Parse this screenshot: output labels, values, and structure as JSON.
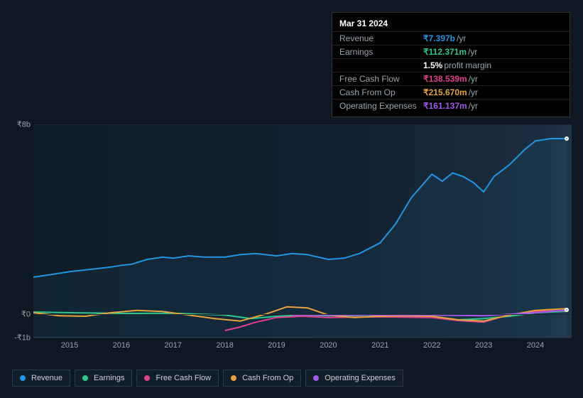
{
  "tooltip": {
    "date": "Mar 31 2024",
    "rows": [
      {
        "label": "Revenue",
        "value": "₹7.397b",
        "unit": "/yr",
        "color": "#2394df"
      },
      {
        "label": "Earnings",
        "value": "₹112.371m",
        "unit": "/yr",
        "color": "#2dc98f",
        "extra_bold": "1.5%",
        "extra": "profit margin"
      },
      {
        "label": "Free Cash Flow",
        "value": "₹138.539m",
        "unit": "/yr",
        "color": "#e0418e"
      },
      {
        "label": "Cash From Op",
        "value": "₹215.670m",
        "unit": "/yr",
        "color": "#e8a33d"
      },
      {
        "label": "Operating Expenses",
        "value": "₹161.137m",
        "unit": "/yr",
        "color": "#a259ec"
      }
    ]
  },
  "chart": {
    "type": "line",
    "background_gradient": [
      "#101c27",
      "#1a2d3e"
    ],
    "grid_color": "#1c2730",
    "y_axis": {
      "min": -1,
      "max": 8,
      "ticks": [
        {
          "v": 8,
          "label": "₹8b"
        },
        {
          "v": 0,
          "label": "₹0"
        },
        {
          "v": -1,
          "label": "-₹1b"
        }
      ],
      "label_color": "#9aa4ad",
      "label_fontsize": 11
    },
    "x_axis": {
      "min": 2014.3,
      "max": 2024.7,
      "ticks": [
        2015,
        2016,
        2017,
        2018,
        2019,
        2020,
        2021,
        2022,
        2023,
        2024
      ],
      "label_color": "#9aa4ad",
      "label_fontsize": 11
    },
    "series": [
      {
        "name": "Revenue",
        "color": "#2394df",
        "width": 2,
        "fill_opacity": 0.08,
        "data": [
          [
            2014.3,
            1.55
          ],
          [
            2014.6,
            1.65
          ],
          [
            2015.0,
            1.78
          ],
          [
            2015.4,
            1.88
          ],
          [
            2015.8,
            1.98
          ],
          [
            2016.0,
            2.05
          ],
          [
            2016.2,
            2.1
          ],
          [
            2016.5,
            2.3
          ],
          [
            2016.8,
            2.4
          ],
          [
            2017.0,
            2.35
          ],
          [
            2017.3,
            2.45
          ],
          [
            2017.6,
            2.4
          ],
          [
            2018.0,
            2.4
          ],
          [
            2018.3,
            2.5
          ],
          [
            2018.6,
            2.55
          ],
          [
            2019.0,
            2.45
          ],
          [
            2019.3,
            2.55
          ],
          [
            2019.6,
            2.5
          ],
          [
            2020.0,
            2.3
          ],
          [
            2020.3,
            2.35
          ],
          [
            2020.6,
            2.55
          ],
          [
            2021.0,
            3.0
          ],
          [
            2021.3,
            3.8
          ],
          [
            2021.6,
            4.9
          ],
          [
            2022.0,
            5.9
          ],
          [
            2022.2,
            5.6
          ],
          [
            2022.4,
            5.95
          ],
          [
            2022.6,
            5.8
          ],
          [
            2022.8,
            5.55
          ],
          [
            2023.0,
            5.15
          ],
          [
            2023.2,
            5.8
          ],
          [
            2023.5,
            6.3
          ],
          [
            2023.8,
            6.95
          ],
          [
            2024.0,
            7.3
          ],
          [
            2024.3,
            7.4
          ],
          [
            2024.6,
            7.4
          ]
        ]
      },
      {
        "name": "Earnings",
        "color": "#2dc98f",
        "width": 2,
        "data": [
          [
            2014.3,
            0.08
          ],
          [
            2015.0,
            0.05
          ],
          [
            2016.0,
            0.02
          ],
          [
            2017.0,
            0.03
          ],
          [
            2018.0,
            -0.05
          ],
          [
            2018.5,
            -0.2
          ],
          [
            2019.0,
            -0.1
          ],
          [
            2019.5,
            -0.05
          ],
          [
            2020.0,
            -0.08
          ],
          [
            2021.0,
            -0.05
          ],
          [
            2022.0,
            -0.1
          ],
          [
            2022.5,
            -0.25
          ],
          [
            2023.0,
            -0.2
          ],
          [
            2023.5,
            -0.1
          ],
          [
            2024.0,
            0.05
          ],
          [
            2024.6,
            0.11
          ]
        ]
      },
      {
        "name": "Free Cash Flow",
        "color": "#e0418e",
        "width": 2,
        "data": [
          [
            2018.0,
            -0.7
          ],
          [
            2018.3,
            -0.55
          ],
          [
            2018.6,
            -0.35
          ],
          [
            2019.0,
            -0.15
          ],
          [
            2019.5,
            -0.1
          ],
          [
            2020.0,
            -0.15
          ],
          [
            2021.0,
            -0.12
          ],
          [
            2022.0,
            -0.15
          ],
          [
            2022.5,
            -0.28
          ],
          [
            2023.0,
            -0.35
          ],
          [
            2023.3,
            -0.15
          ],
          [
            2023.6,
            0.0
          ],
          [
            2024.0,
            0.1
          ],
          [
            2024.6,
            0.14
          ]
        ]
      },
      {
        "name": "Cash From Op",
        "color": "#e8a33d",
        "width": 2,
        "data": [
          [
            2014.3,
            0.05
          ],
          [
            2014.8,
            -0.08
          ],
          [
            2015.3,
            -0.1
          ],
          [
            2015.8,
            0.05
          ],
          [
            2016.3,
            0.15
          ],
          [
            2016.8,
            0.1
          ],
          [
            2017.3,
            -0.05
          ],
          [
            2017.8,
            -0.2
          ],
          [
            2018.3,
            -0.3
          ],
          [
            2018.8,
            0.0
          ],
          [
            2019.2,
            0.3
          ],
          [
            2019.6,
            0.25
          ],
          [
            2020.0,
            -0.05
          ],
          [
            2020.5,
            -0.15
          ],
          [
            2021.0,
            -0.1
          ],
          [
            2021.5,
            -0.08
          ],
          [
            2022.0,
            -0.1
          ],
          [
            2022.5,
            -0.25
          ],
          [
            2023.0,
            -0.3
          ],
          [
            2023.5,
            -0.05
          ],
          [
            2024.0,
            0.15
          ],
          [
            2024.6,
            0.22
          ]
        ]
      },
      {
        "name": "Operating Expenses",
        "color": "#a259ec",
        "width": 2,
        "data": [
          [
            2019.3,
            -0.05
          ],
          [
            2020.0,
            -0.05
          ],
          [
            2021.0,
            -0.05
          ],
          [
            2022.0,
            -0.05
          ],
          [
            2023.0,
            -0.08
          ],
          [
            2024.0,
            0.05
          ],
          [
            2024.6,
            0.16
          ]
        ]
      }
    ],
    "marker": {
      "x": 2024.6,
      "series_colors": [
        "#2394df",
        "#a259ec"
      ]
    }
  },
  "legend": {
    "items": [
      {
        "label": "Revenue",
        "color": "#2394df"
      },
      {
        "label": "Earnings",
        "color": "#2dc98f"
      },
      {
        "label": "Free Cash Flow",
        "color": "#e0418e"
      },
      {
        "label": "Cash From Op",
        "color": "#e8a33d"
      },
      {
        "label": "Operating Expenses",
        "color": "#a259ec"
      }
    ],
    "border_color": "#2e3a45",
    "text_color": "#c8d0d8",
    "fontsize": 11
  }
}
